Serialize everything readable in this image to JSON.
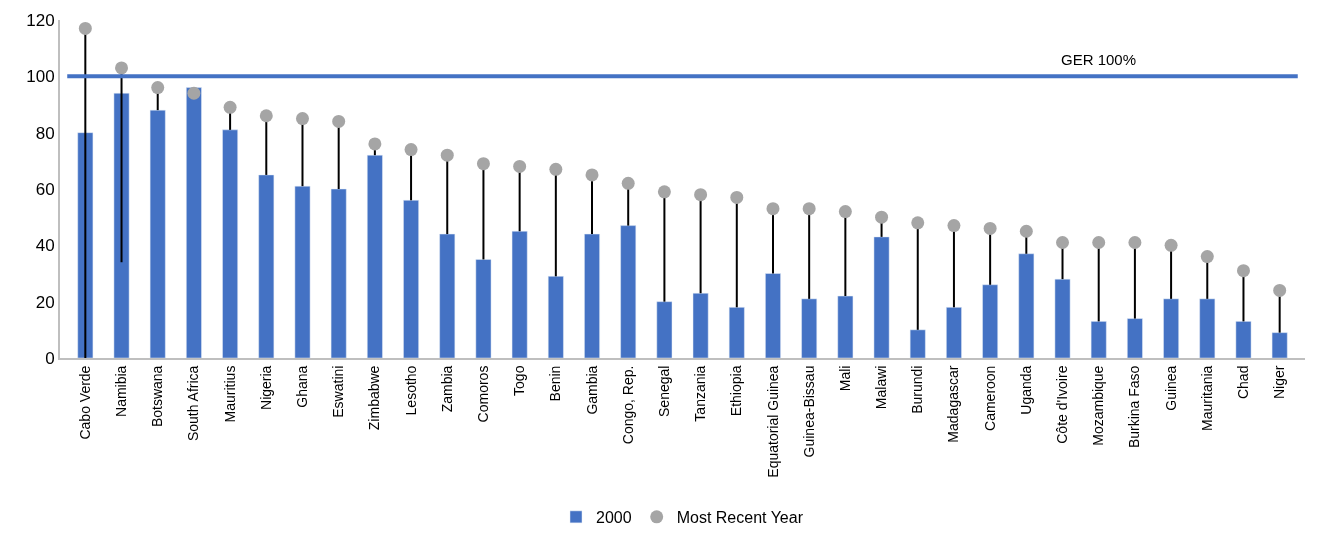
{
  "chart_data": {
    "type": "bar",
    "categories": [
      "Cabo Verde",
      "Namibia",
      "Botswana",
      "South Africa",
      "Mauritius",
      "Nigeria",
      "Ghana",
      "Eswatini",
      "Zimbabwe",
      "Lesotho",
      "Zambia",
      "Comoros",
      "Togo",
      "Benin",
      "Gambia",
      "Congo, Rep.",
      "Senegal",
      "Tanzania",
      "Ethiopia",
      "Equatorial Guinea",
      "Guinea-Bissau",
      "Mali",
      "Malawi",
      "Burundi",
      "Madagascar",
      "Cameroon",
      "Uganda",
      "Côte d'Ivoire",
      "Mozambique",
      "Burkina Faso",
      "Guinea",
      "Mauritania",
      "Chad",
      "Niger"
    ],
    "series": [
      {
        "name": "2000",
        "color": "#4472c4",
        "values": [
          80,
          94,
          88,
          96,
          81,
          65,
          61,
          60,
          72,
          56,
          44,
          35,
          45,
          29,
          44,
          47,
          20,
          23,
          18,
          30,
          21,
          22,
          43,
          10,
          18,
          26,
          37,
          28,
          13,
          14,
          21,
          21,
          13,
          9
        ]
      },
      {
        "name": "Most Recent Year",
        "type": "scatter",
        "color": "#a5a5a5",
        "marker": "circle",
        "values": [
          117,
          103,
          96,
          94,
          89,
          86,
          85,
          84,
          76,
          74,
          72,
          69,
          68,
          67,
          65,
          62,
          59,
          58,
          57,
          53,
          53,
          52,
          50,
          48,
          47,
          46,
          45,
          41,
          41,
          41,
          40,
          36,
          31,
          24
        ],
        "errors": [
          [
            0,
            117
          ],
          [
            34,
            103
          ],
          [
            88,
            96
          ],
          null,
          [
            81,
            89
          ],
          [
            65,
            86
          ],
          [
            61,
            85
          ],
          [
            60,
            84
          ],
          [
            72,
            76
          ],
          [
            56,
            74
          ],
          [
            44,
            72
          ],
          [
            35,
            69
          ],
          [
            45,
            68
          ],
          [
            29,
            67
          ],
          [
            44,
            65
          ],
          [
            47,
            62
          ],
          [
            20,
            59
          ],
          [
            23,
            58
          ],
          [
            18,
            57
          ],
          [
            30,
            53
          ],
          [
            21,
            53
          ],
          [
            22,
            52
          ],
          [
            43,
            50
          ],
          [
            10,
            48
          ],
          [
            18,
            47
          ],
          [
            26,
            46
          ],
          [
            37,
            45
          ],
          [
            28,
            41
          ],
          [
            13,
            41
          ],
          [
            14,
            41
          ],
          [
            21,
            40
          ],
          [
            21,
            36
          ],
          [
            13,
            31
          ],
          [
            9,
            24
          ]
        ]
      }
    ],
    "ylim": [
      0,
      120
    ],
    "yticks": [
      0,
      20,
      40,
      60,
      80,
      100,
      120
    ],
    "ref_lines": [
      {
        "axis": "y",
        "value": 100,
        "label": "GER 100%",
        "color": "#4472c4"
      }
    ],
    "legend": "bottom"
  }
}
